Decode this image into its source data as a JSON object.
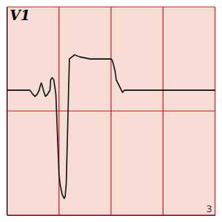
{
  "chart_data": {
    "type": "line",
    "x": [
      0.0,
      2.0,
      2.2,
      2.5,
      2.7,
      2.9,
      3.0,
      3.1,
      3.2,
      3.3,
      3.4,
      3.5,
      3.6,
      3.7,
      3.8,
      3.9,
      4.0,
      4.1,
      4.15,
      4.2,
      4.35,
      4.5,
      4.65,
      4.7,
      5.0,
      5.1,
      5.3,
      5.5,
      5.6,
      5.65,
      5.7,
      6.0,
      6.5,
      7.0,
      7.5,
      8.0,
      8.5,
      9.0,
      9.5,
      10.0,
      10.1,
      10.2,
      10.3,
      10.4,
      10.5,
      11.0,
      11.1,
      11.2,
      11.3,
      11.5,
      12.0,
      12.5,
      20.0
    ],
    "values": [
      6.0,
      6.0,
      6.0,
      5.8,
      5.7,
      5.8,
      5.9,
      6.0,
      6.2,
      6.35,
      6.2,
      6.0,
      5.85,
      5.7,
      5.75,
      5.8,
      5.9,
      5.95,
      6.05,
      6.5,
      6.6,
      6.5,
      6.0,
      5.8,
      2.0,
      1.5,
      1.0,
      0.8,
      0.9,
      1.2,
      1.5,
      7.5,
      7.7,
      7.6,
      7.55,
      7.5,
      7.5,
      7.5,
      7.5,
      7.5,
      7.45,
      7.3,
      7.1,
      6.9,
      6.5,
      6.0,
      5.9,
      5.95,
      6.0,
      6.0,
      6.0,
      6.0,
      6.0
    ],
    "color": "#1a1a1a",
    "xlim": [
      0,
      20
    ],
    "ylim": [
      0,
      10
    ],
    "xticks": [
      0,
      5,
      10,
      15,
      20
    ],
    "yticks": [
      0,
      5,
      10
    ],
    "grid": true,
    "tick_labels": false,
    "annotations": [
      "V1",
      "3"
    ]
  }
}
